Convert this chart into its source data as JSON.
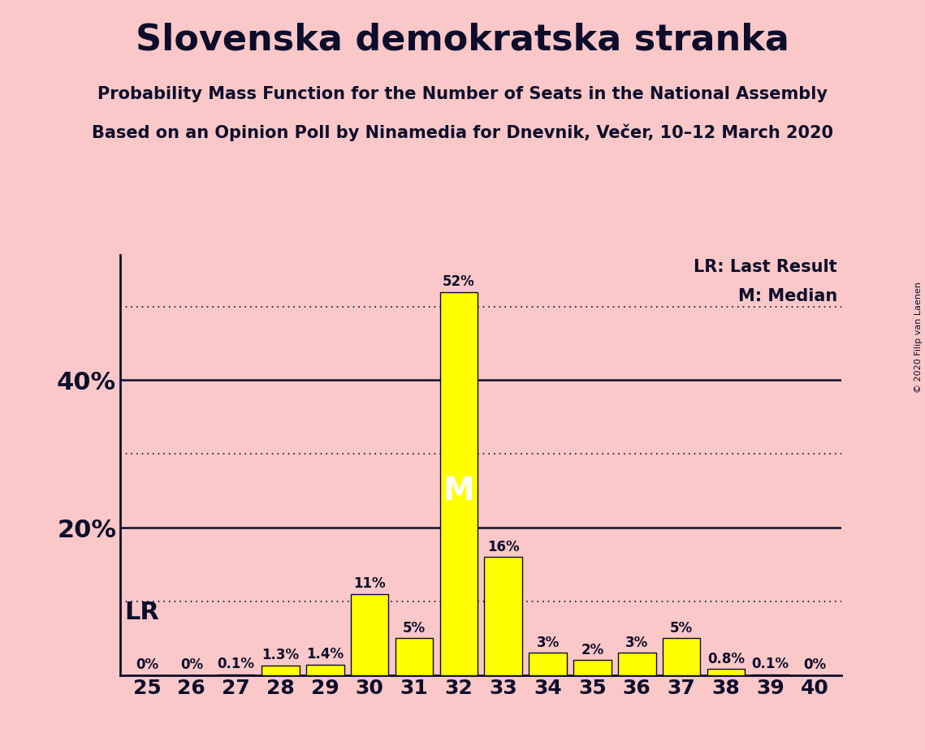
{
  "title": "Slovenska demokratska stranka",
  "subtitle1": "Probability Mass Function for the Number of Seats in the National Assembly",
  "subtitle2": "Based on an Opinion Poll by Ninamedia for Dnevnik, Večer, 10–12 March 2020",
  "copyright": "© 2020 Filip van Laenen",
  "categories": [
    25,
    26,
    27,
    28,
    29,
    30,
    31,
    32,
    33,
    34,
    35,
    36,
    37,
    38,
    39,
    40
  ],
  "values": [
    0,
    0,
    0.1,
    1.3,
    1.4,
    11,
    5,
    52,
    16,
    3,
    2,
    3,
    5,
    0.8,
    0.1,
    0
  ],
  "bar_color": "#ffff00",
  "bar_edge_color": "#0a0a1e",
  "background_color": "#fac8c8",
  "text_color": "#0d0d2b",
  "solid_lines": [
    20,
    40
  ],
  "dotted_lines": [
    10,
    30,
    50
  ],
  "lr_label": "LR",
  "median_seat": 32,
  "median_label": "M",
  "lr_legend": "LR: Last Result",
  "median_legend": "M: Median",
  "ylim": [
    0,
    57
  ],
  "bar_width": 0.85
}
